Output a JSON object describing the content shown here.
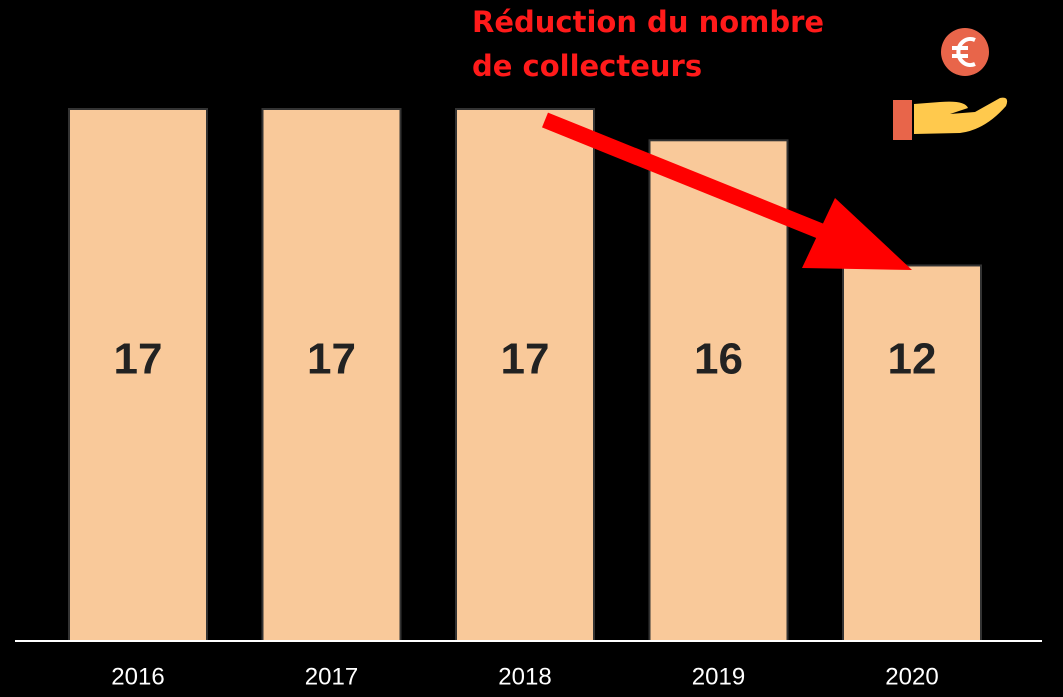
{
  "chart_data": {
    "type": "bar",
    "annotation": [
      "Réduction du nombre",
      "de collecteurs"
    ],
    "categories": [
      "2016",
      "2017",
      "2018",
      "2019",
      "2020"
    ],
    "values": [
      17,
      17,
      17,
      16,
      12
    ],
    "color": "#f9c99a"
  }
}
